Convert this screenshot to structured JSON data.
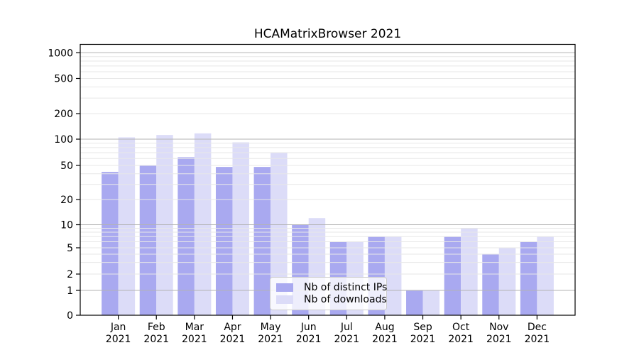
{
  "title": "HCAMatrixBrowser 2021",
  "chart_data": {
    "type": "bar",
    "title": "HCAMatrixBrowser 2021",
    "categories": [
      "Jan 2021",
      "Feb 2021",
      "Mar 2021",
      "Apr 2021",
      "May 2021",
      "Jun 2021",
      "Jul 2021",
      "Aug 2021",
      "Sep 2021",
      "Oct 2021",
      "Nov 2021",
      "Dec 2021"
    ],
    "series": [
      {
        "name": "Nb of distinct IPs",
        "color": "#a9a9f0",
        "values": [
          42,
          50,
          62,
          48,
          48,
          10,
          6,
          7,
          1,
          7,
          4,
          6
        ]
      },
      {
        "name": "Nb of downloads",
        "color": "#dcdcf8",
        "values": [
          105,
          112,
          117,
          92,
          70,
          12,
          6,
          7,
          1,
          9,
          5,
          7
        ]
      }
    ],
    "xlabel": "",
    "ylabel": "",
    "yscale": "symlog",
    "y_ticks": [
      0,
      1,
      2,
      5,
      10,
      20,
      50,
      100,
      200,
      500,
      1000
    ],
    "ylim": [
      0,
      1250
    ],
    "grid": true,
    "legend_position": "lower center",
    "colors": {
      "major_grid": "#b3b3b3",
      "minor_grid": "#e7e7e7",
      "axis": "#000000",
      "text": "#000000",
      "background": "#ffffff"
    }
  }
}
